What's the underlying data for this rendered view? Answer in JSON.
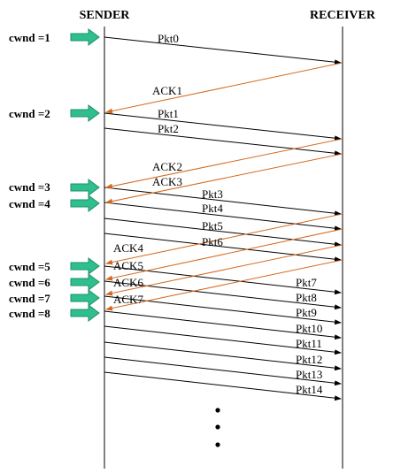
{
  "headers": {
    "sender": "SENDER",
    "receiver": "RECEIVER"
  },
  "colors": {
    "ack": "#d46a1f",
    "arrow": "#2fbf8f",
    "arrow_edge": "#1f8f68",
    "packet": "#000000"
  },
  "cwnd": [
    "cwnd =1",
    "cwnd =2",
    "cwnd =3",
    "cwnd =4",
    "cwnd =5",
    "cwnd =6",
    "cwnd =7",
    "cwnd =8"
  ],
  "packets": [
    "Pkt0",
    "Pkt1",
    "Pkt2",
    "Pkt3",
    "Pkt4",
    "Pkt5",
    "Pkt6",
    "Pkt7",
    "Pkt8",
    "Pkt9",
    "Pkt10",
    "Pkt11",
    "Pkt12",
    "Pkt13",
    "Pkt14"
  ],
  "acks": [
    "ACK1",
    "ACK2",
    "ACK3",
    "ACK4",
    "ACK5",
    "ACK6",
    "ACK7"
  ],
  "continuation_dots": 3
}
